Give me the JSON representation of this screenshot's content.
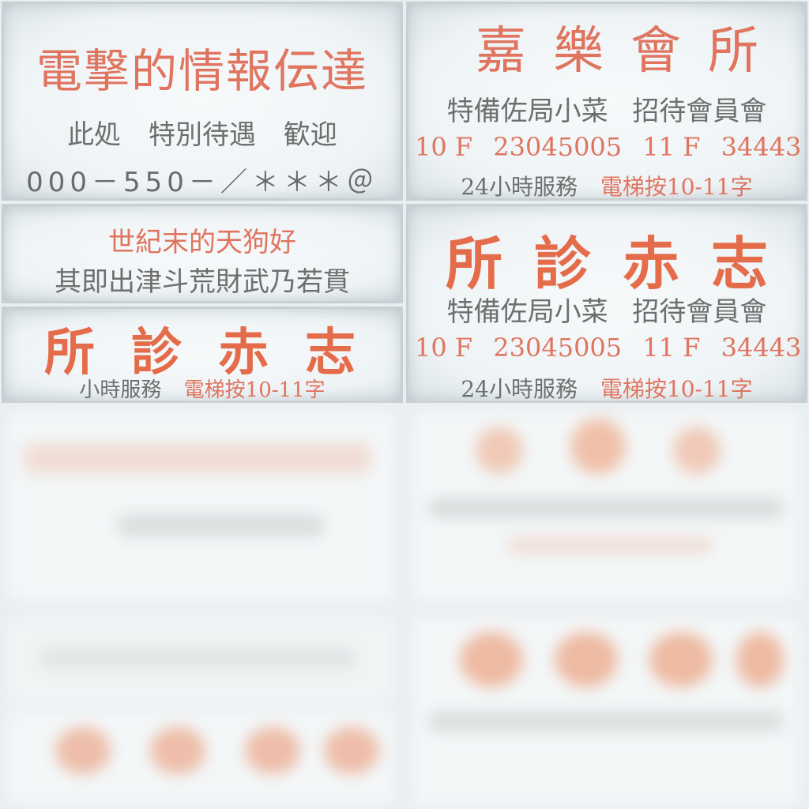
{
  "sign1": {
    "title": "電撃的情報伝達",
    "line2": [
      "此処",
      "特別待遇",
      "歓迎"
    ],
    "phone": "000－550－／＊＊＊＠"
  },
  "sign2": {
    "title": "嘉樂會所",
    "services": [
      "特備佐局小菜",
      "招待會員會"
    ],
    "phone_line": [
      "10 F",
      "23045005",
      "11 F",
      "34443"
    ],
    "bottom": [
      "24小時服務",
      "電梯按10-11字"
    ]
  },
  "sign3": {
    "line1": "世紀末的天狗好",
    "line2": "其即出津斗荒財武乃若貫"
  },
  "sign4": {
    "title": "所診赤志",
    "services": [
      "特備佐局小菜",
      "招待會員會"
    ],
    "phone_line": [
      "10 F",
      "23045005",
      "11 F",
      "34443"
    ],
    "bottom": [
      "24小時服務",
      "電梯按10-11字"
    ]
  },
  "sign5": {
    "title": "所診赤志",
    "bottom": [
      "小時服務",
      "電梯按10-11字"
    ]
  },
  "colors": {
    "red_text": "#e0745f",
    "gray_text": "#6e6e6e",
    "sign_bg": "#f3f7f8"
  }
}
